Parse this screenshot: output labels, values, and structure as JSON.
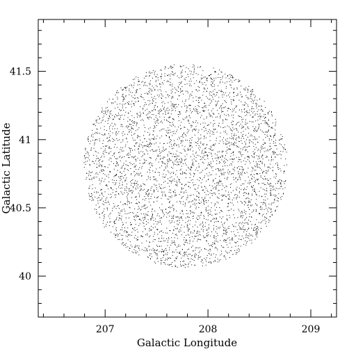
{
  "chart_data": {
    "type": "scatter",
    "title": "",
    "xlabel": "Galactic Longitude",
    "ylabel": "Galactic Latitude",
    "xlim": [
      206.35,
      209.25
    ],
    "ylim": [
      39.7,
      41.88
    ],
    "x_major_ticks": [
      207,
      208,
      209
    ],
    "x_tick_labels": [
      "207",
      "208",
      "209"
    ],
    "y_major_ticks": [
      40,
      40.5,
      41,
      41.5
    ],
    "y_tick_labels": [
      "40",
      "40.5",
      "41",
      "41.5"
    ],
    "grid": false,
    "marker_color": "#000000",
    "field": {
      "shape": "disk",
      "center": [
        207.78,
        40.81
      ],
      "radius_deg": 0.99,
      "point_count": 4200
    }
  }
}
